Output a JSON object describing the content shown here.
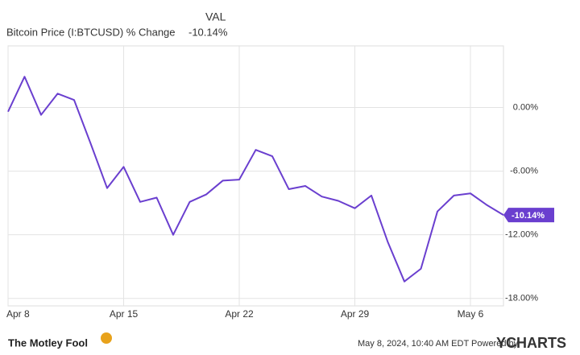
{
  "chart_data": {
    "type": "line",
    "legend": {
      "header": "VAL",
      "name": "Bitcoin Price (I:BTCUSD) % Change",
      "value": "-10.14%"
    },
    "categories": [
      "Apr 8",
      null,
      null,
      null,
      null,
      null,
      null,
      "Apr 15",
      null,
      null,
      null,
      null,
      null,
      null,
      "Apr 22",
      null,
      null,
      null,
      null,
      null,
      null,
      "Apr 29",
      null,
      null,
      null,
      null,
      null,
      null,
      "May 6",
      null,
      null
    ],
    "series": [
      {
        "name": "Bitcoin Price (I:BTCUSD) % Change",
        "color": "#6a3fcf",
        "values": [
          -0.4,
          2.9,
          -0.7,
          1.3,
          0.7,
          -3.4,
          -7.6,
          -5.6,
          -8.9,
          -8.5,
          -12.0,
          -8.9,
          -8.2,
          -6.9,
          -6.8,
          -4.0,
          -4.6,
          -7.7,
          -7.4,
          -8.4,
          -8.8,
          -9.5,
          -8.3,
          -12.7,
          -16.4,
          -15.2,
          -9.8,
          -8.3,
          -8.1,
          -9.2,
          -10.14
        ],
        "end_label": "-10.14%"
      }
    ],
    "ylim": [
      -18.7,
      5.8
    ],
    "yticks": [
      {
        "value": 0,
        "label": "0.00%"
      },
      {
        "value": -6,
        "label": "-6.00%"
      },
      {
        "value": -12,
        "label": "-12.00%"
      },
      {
        "value": -18,
        "label": "-18.00%"
      }
    ],
    "grid": true,
    "footer": {
      "brand": "The Motley Fool",
      "timestamp": "May 8, 2024, 10:40 AM EDT Powered by",
      "provider": "YCHARTS"
    }
  }
}
